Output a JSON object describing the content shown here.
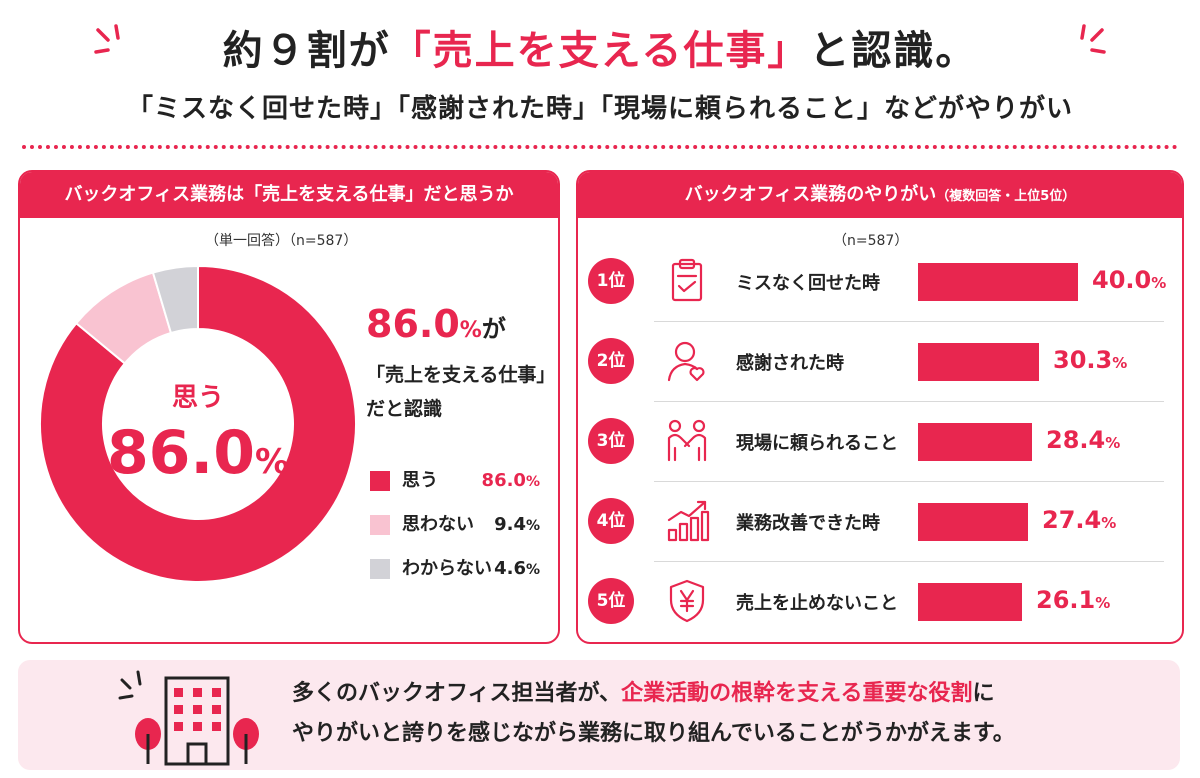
{
  "header": {
    "title_pre": "約９割が",
    "title_highlight": "「売上を支える仕事」",
    "title_post": "と認識。",
    "subtitle": "「ミスなく回せた時」「感謝された時」「現場に頼られること」などがやりがい"
  },
  "left_panel": {
    "heading": "バックオフィス業務は「売上を支える仕事」だと思うか",
    "note": "（単一回答）（n=587）",
    "center_label": "思う",
    "center_value": "86.0",
    "center_unit": "%",
    "highlight_value": "86.0",
    "highlight_unit": "%",
    "highlight_suffix": "が",
    "desc_line1": "「売上を支える仕事」",
    "desc_line2": "だと認識"
  },
  "right_panel": {
    "heading": "バックオフィス業務のやりがい",
    "heading_note": "（複数回答・上位5位）",
    "note": "（n=587）"
  },
  "chart_data": [
    {
      "type": "pie",
      "categories": [
        "思う",
        "思わない",
        "わからない"
      ],
      "values": [
        86.0,
        9.4,
        4.6
      ],
      "value_labels": [
        "86.0",
        "9.4",
        "4.6"
      ],
      "unit": "%",
      "colors": [
        "#e8264f",
        "#f9c3d1",
        "#d2d2d7"
      ],
      "legend": "right"
    },
    {
      "type": "bar",
      "orientation": "horizontal",
      "ranks": [
        "1位",
        "2位",
        "3位",
        "4位",
        "5位"
      ],
      "categories": [
        "ミスなく回せた時",
        "感謝された時",
        "現場に頼られること",
        "業務改善できた時",
        "売上を止めないこと"
      ],
      "values": [
        40.0,
        30.3,
        28.4,
        27.4,
        26.1
      ],
      "value_labels": [
        "40.0",
        "30.3",
        "28.4",
        "27.4",
        "26.1"
      ],
      "unit": "%",
      "icons": [
        "clipboard-check-icon",
        "person-heart-icon",
        "handshake-icon",
        "growth-chart-icon",
        "yen-shield-icon"
      ],
      "color": "#e8264f"
    }
  ],
  "footer": {
    "line1_pre": "多くのバックオフィス担当者が、",
    "line1_highlight": "企業活動の根幹を支える重要な役割",
    "line1_post": "に",
    "line2": "やりがいと誇りを感じながら業務に取り組んでいることがうかがえます。"
  },
  "colors": {
    "accent": "#e8264f",
    "light_pink": "#f9c3d1",
    "gray": "#d2d2d7",
    "footer_bg": "#fce8ee"
  }
}
